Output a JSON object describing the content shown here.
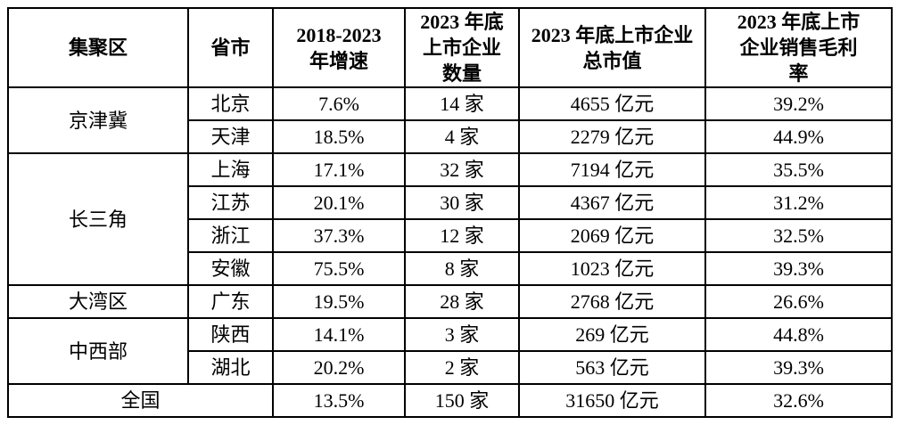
{
  "table": {
    "columns": [
      {
        "label": "集聚区"
      },
      {
        "label": "省市"
      },
      {
        "label": "2018-2023\n年增速"
      },
      {
        "label": "2023 年底\n上市企业\n数量"
      },
      {
        "label": "2023 年底上市企业\n总市值"
      },
      {
        "label": "2023 年底上市\n企业销售毛利\n率"
      }
    ],
    "regions": [
      {
        "label": "京津冀",
        "rowspan": 2
      },
      {
        "label": "长三角",
        "rowspan": 4
      },
      {
        "label": "大湾区",
        "rowspan": 1
      },
      {
        "label": "中西部",
        "rowspan": 2
      }
    ],
    "rows": [
      {
        "region": "京津冀",
        "province": "北京",
        "growth": "7.6%",
        "count": "14 家",
        "value": "4655 亿元",
        "margin": "39.2%"
      },
      {
        "region": "京津冀",
        "province": "天津",
        "growth": "18.5%",
        "count": "4 家",
        "value": "2279 亿元",
        "margin": "44.9%"
      },
      {
        "region": "长三角",
        "province": "上海",
        "growth": "17.1%",
        "count": "32 家",
        "value": "7194 亿元",
        "margin": "35.5%"
      },
      {
        "region": "长三角",
        "province": "江苏",
        "growth": "20.1%",
        "count": "30 家",
        "value": "4367 亿元",
        "margin": "31.2%"
      },
      {
        "region": "长三角",
        "province": "浙江",
        "growth": "37.3%",
        "count": "12 家",
        "value": "2069 亿元",
        "margin": "32.5%"
      },
      {
        "region": "长三角",
        "province": "安徽",
        "growth": "75.5%",
        "count": "8 家",
        "value": "1023 亿元",
        "margin": "39.3%"
      },
      {
        "region": "大湾区",
        "province": "广东",
        "growth": "19.5%",
        "count": "28 家",
        "value": "2768 亿元",
        "margin": "26.6%"
      },
      {
        "region": "中西部",
        "province": "陕西",
        "growth": "14.1%",
        "count": "3 家",
        "value": "269 亿元",
        "margin": "44.8%"
      },
      {
        "region": "中西部",
        "province": "湖北",
        "growth": "20.2%",
        "count": "2 家",
        "value": "563 亿元",
        "margin": "39.3%"
      }
    ],
    "footer": {
      "label": "全国",
      "growth": "13.5%",
      "count": "150 家",
      "value": "31650 亿元",
      "margin": "32.6%"
    }
  }
}
